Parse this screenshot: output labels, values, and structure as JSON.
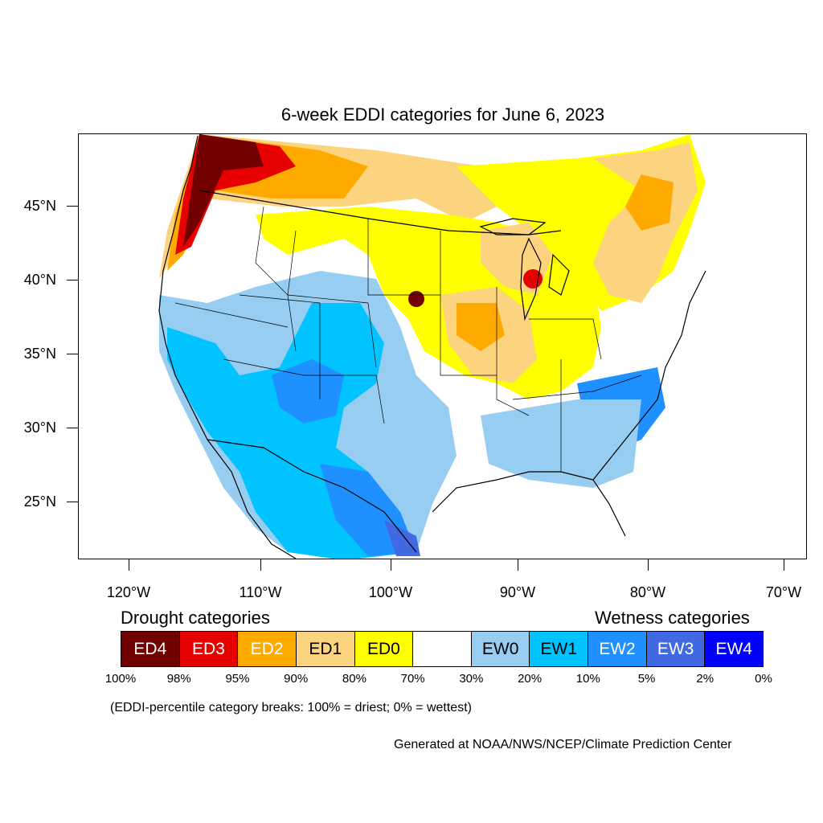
{
  "title": "6-week EDDI categories for June 6, 2023",
  "lat_labels": [
    "45°N",
    "40°N",
    "35°N",
    "30°N",
    "25°N"
  ],
  "lon_labels": [
    "120°W",
    "110°W",
    "100°W",
    "90°W",
    "80°W",
    "70°W"
  ],
  "legend": {
    "drought_heading": "Drought categories",
    "wetness_heading": "Wetness categories",
    "categories": [
      {
        "label": "ED4",
        "color": "#730000",
        "text_color": "#ffffff"
      },
      {
        "label": "ED3",
        "color": "#e60000",
        "text_color": "#ffffff"
      },
      {
        "label": "ED2",
        "color": "#ffaa00",
        "text_color": "#ffffff"
      },
      {
        "label": "ED1",
        "color": "#fcd37f",
        "text_color": "#000000"
      },
      {
        "label": "ED0",
        "color": "#ffff00",
        "text_color": "#000000"
      },
      {
        "label": "",
        "color": "#ffffff",
        "text_color": "#000000"
      },
      {
        "label": "EW0",
        "color": "#96cdf0",
        "text_color": "#000000"
      },
      {
        "label": "EW1",
        "color": "#00c3ff",
        "text_color": "#000000"
      },
      {
        "label": "EW2",
        "color": "#1e90ff",
        "text_color": "#ffffff"
      },
      {
        "label": "EW3",
        "color": "#4169e1",
        "text_color": "#ffffff"
      },
      {
        "label": "EW4",
        "color": "#0000ff",
        "text_color": "#ffffff"
      }
    ],
    "breaks": [
      "100%",
      "98%",
      "95%",
      "90%",
      "80%",
      "70%",
      "30%",
      "20%",
      "10%",
      "5%",
      "2%",
      "0%"
    ]
  },
  "note": "(EDDI-percentile category breaks: 100% = driest; 0% = wettest)",
  "credit": "Generated at NOAA/NWS/NCEP/Climate Prediction Center"
}
